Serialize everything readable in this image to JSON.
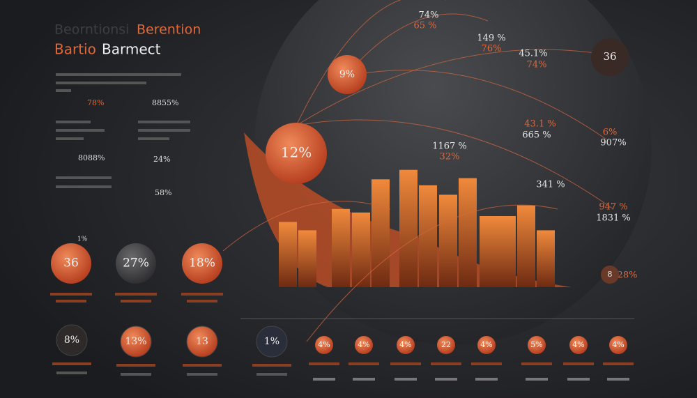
{
  "header": {
    "title_a": "Beorntionsi",
    "title_b": "Berention",
    "subtitle_accent": "Bartio",
    "subtitle": "Barmect"
  },
  "stats": [
    "78%",
    "8855%",
    "8088%",
    "24%",
    "58%"
  ],
  "globe_labels": [
    "74%",
    "65 %",
    "149 %",
    "76%",
    "45.1%",
    "74%",
    "1167 %",
    "32%",
    "341 %",
    "947 %",
    "1831 %",
    "43.1 %",
    "665 %",
    "6%",
    "907%",
    "28%"
  ],
  "bubbles": [
    "36",
    "9%",
    "12%",
    "8"
  ],
  "bars": {
    "values": [
      55,
      48,
      66,
      63,
      91,
      99,
      86,
      78,
      92,
      60,
      60,
      69,
      48
    ]
  },
  "mid_circles": [
    "36",
    "27%",
    "18%",
    "1%"
  ],
  "low_circles": [
    "8%",
    "13%",
    "13",
    "1%"
  ],
  "row_circles": [
    "4%",
    "4%",
    "4%",
    "22",
    "4%",
    "5%",
    "4%",
    "4%"
  ]
}
